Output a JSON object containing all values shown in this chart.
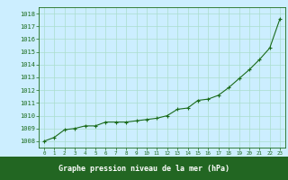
{
  "x": [
    0,
    1,
    2,
    3,
    4,
    5,
    6,
    7,
    8,
    9,
    10,
    11,
    12,
    13,
    14,
    15,
    16,
    17,
    18,
    19,
    20,
    21,
    22,
    23
  ],
  "y": [
    1008.0,
    1008.3,
    1008.9,
    1009.0,
    1009.2,
    1009.2,
    1009.5,
    1009.5,
    1009.5,
    1009.6,
    1009.7,
    1009.8,
    1010.0,
    1010.5,
    1010.6,
    1011.2,
    1011.3,
    1011.6,
    1012.2,
    1012.9,
    1013.6,
    1014.4,
    1015.3,
    1017.6
  ],
  "ylim": [
    1007.5,
    1018.5
  ],
  "yticks": [
    1008,
    1009,
    1010,
    1011,
    1012,
    1013,
    1014,
    1015,
    1016,
    1017,
    1018
  ],
  "xticks": [
    0,
    1,
    2,
    3,
    4,
    5,
    6,
    7,
    8,
    9,
    10,
    11,
    12,
    13,
    14,
    15,
    16,
    17,
    18,
    19,
    20,
    21,
    22,
    23
  ],
  "xlabel": "Graphe pression niveau de la mer (hPa)",
  "line_color": "#1a6b1a",
  "marker": "+",
  "marker_color": "#1a6b1a",
  "bg_color": "#cceeff",
  "grid_color": "#aaddcc",
  "label_color": "#1a6b1a",
  "bottom_bar_color": "#226622",
  "figsize": [
    3.2,
    2.0
  ],
  "dpi": 100
}
